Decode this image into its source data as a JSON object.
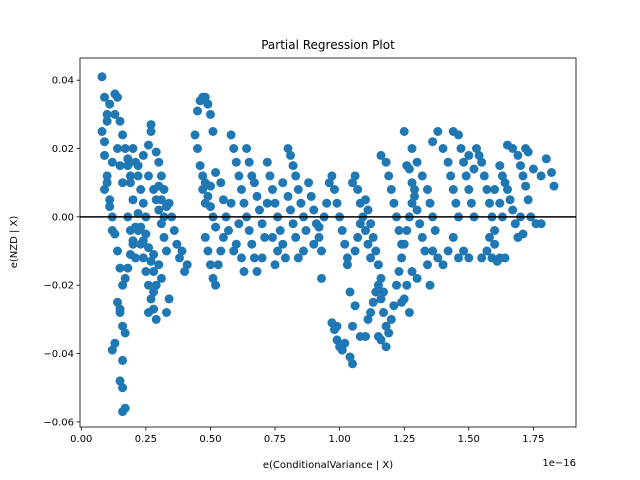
{
  "chart_data": {
    "type": "scatter",
    "title": "Partial Regression Plot",
    "xlabel": "e(ConditionalVariance | X)",
    "ylabel": "e(NZD | X)",
    "x_offset_label": "1e−16",
    "xlim": [
      -0.005,
      1.915
    ],
    "ylim": [
      -0.0615,
      0.0465
    ],
    "xticks": [
      0.0,
      0.25,
      0.5,
      0.75,
      1.0,
      1.25,
      1.5,
      1.75
    ],
    "xtick_labels": [
      "0.00",
      "0.25",
      "0.50",
      "0.75",
      "1.00",
      "1.25",
      "1.50",
      "1.75"
    ],
    "yticks": [
      -0.06,
      -0.04,
      -0.02,
      0.0,
      0.02,
      0.04
    ],
    "ytick_labels": [
      "−0.06",
      "−0.04",
      "−0.02",
      "0.00",
      "0.02",
      "0.04"
    ],
    "grid": false,
    "point_color": "#1f77b4",
    "line_color": "#000000",
    "fitted_line": {
      "x": [
        -0.005,
        1.915
      ],
      "y": [
        0.0,
        0.0
      ]
    },
    "points": [
      [
        0.08,
        0.041
      ],
      [
        0.09,
        0.035
      ],
      [
        0.1,
        0.03
      ],
      [
        0.08,
        0.025
      ],
      [
        0.09,
        0.018
      ],
      [
        0.1,
        0.01
      ],
      [
        0.11,
        0.005
      ],
      [
        0.12,
        0.0
      ],
      [
        0.09,
        0.022
      ],
      [
        0.1,
        0.028
      ],
      [
        0.11,
        0.033
      ],
      [
        0.12,
        0.016
      ],
      [
        0.1,
        0.012
      ],
      [
        0.09,
        0.008
      ],
      [
        0.11,
        0.003
      ],
      [
        0.12,
        -0.004
      ],
      [
        0.13,
        0.036
      ],
      [
        0.14,
        0.035
      ],
      [
        0.13,
        0.03
      ],
      [
        0.15,
        0.028
      ],
      [
        0.16,
        0.024
      ],
      [
        0.14,
        0.02
      ],
      [
        0.15,
        0.015
      ],
      [
        0.16,
        0.01
      ],
      [
        0.13,
        -0.005
      ],
      [
        0.14,
        -0.01
      ],
      [
        0.15,
        -0.015
      ],
      [
        0.16,
        -0.02
      ],
      [
        0.14,
        -0.025
      ],
      [
        0.15,
        -0.028
      ],
      [
        0.16,
        -0.032
      ],
      [
        0.17,
        -0.034
      ],
      [
        0.13,
        -0.037
      ],
      [
        0.12,
        -0.039
      ],
      [
        0.16,
        -0.042
      ],
      [
        0.15,
        -0.048
      ],
      [
        0.16,
        -0.05
      ],
      [
        0.17,
        -0.056
      ],
      [
        0.16,
        -0.057
      ],
      [
        0.15,
        -0.027
      ],
      [
        0.17,
        0.02
      ],
      [
        0.18,
        0.015
      ],
      [
        0.19,
        0.01
      ],
      [
        0.2,
        0.005
      ],
      [
        0.18,
        0.0
      ],
      [
        0.19,
        -0.004
      ],
      [
        0.2,
        -0.008
      ],
      [
        0.21,
        -0.012
      ],
      [
        0.18,
        0.017
      ],
      [
        0.19,
        0.012
      ],
      [
        0.2,
        0.02
      ],
      [
        0.21,
        0.016
      ],
      [
        0.22,
        0.012
      ],
      [
        0.23,
        0.008
      ],
      [
        0.24,
        0.004
      ],
      [
        0.25,
        0.0
      ],
      [
        0.22,
        -0.004
      ],
      [
        0.23,
        -0.008
      ],
      [
        0.24,
        -0.012
      ],
      [
        0.25,
        -0.016
      ],
      [
        0.26,
        -0.02
      ],
      [
        0.27,
        -0.024
      ],
      [
        0.28,
        -0.027
      ],
      [
        0.29,
        -0.03
      ],
      [
        0.22,
        0.015
      ],
      [
        0.24,
        0.018
      ],
      [
        0.26,
        0.021
      ],
      [
        0.27,
        0.025
      ],
      [
        0.27,
        0.027
      ],
      [
        0.26,
        0.012
      ],
      [
        0.28,
        0.008
      ],
      [
        0.29,
        0.005
      ],
      [
        0.3,
        0.002
      ],
      [
        0.31,
        -0.002
      ],
      [
        0.32,
        -0.006
      ],
      [
        0.33,
        -0.01
      ],
      [
        0.3,
        -0.014
      ],
      [
        0.31,
        -0.018
      ],
      [
        0.29,
        -0.02
      ],
      [
        0.28,
        -0.016
      ],
      [
        0.29,
        0.019
      ],
      [
        0.3,
        0.016
      ],
      [
        0.31,
        0.012
      ],
      [
        0.32,
        0.008
      ],
      [
        0.33,
        0.003
      ],
      [
        0.3,
        0.009
      ],
      [
        0.31,
        0.005
      ],
      [
        0.32,
        0.0
      ],
      [
        0.25,
        -0.005
      ],
      [
        0.26,
        -0.009
      ],
      [
        0.27,
        -0.013
      ],
      [
        0.28,
        -0.011
      ],
      [
        0.24,
        -0.007
      ],
      [
        0.23,
        -0.003
      ],
      [
        0.22,
        0.001
      ],
      [
        0.21,
        -0.003
      ],
      [
        0.2,
        -0.007
      ],
      [
        0.19,
        -0.011
      ],
      [
        0.18,
        -0.015
      ],
      [
        0.17,
        -0.018
      ],
      [
        0.35,
        0.0
      ],
      [
        0.36,
        -0.004
      ],
      [
        0.34,
        0.004
      ],
      [
        0.37,
        -0.008
      ],
      [
        0.38,
        -0.012
      ],
      [
        0.39,
        -0.01
      ],
      [
        0.4,
        -0.016
      ],
      [
        0.41,
        -0.014
      ],
      [
        0.33,
        -0.028
      ],
      [
        0.34,
        -0.024
      ],
      [
        0.26,
        -0.028
      ],
      [
        0.28,
        -0.022
      ],
      [
        0.44,
        0.024
      ],
      [
        0.45,
        0.031
      ],
      [
        0.46,
        0.034
      ],
      [
        0.47,
        0.035
      ],
      [
        0.48,
        0.035
      ],
      [
        0.49,
        0.033
      ],
      [
        0.5,
        0.03
      ],
      [
        0.51,
        0.025
      ],
      [
        0.45,
        0.02
      ],
      [
        0.46,
        0.015
      ],
      [
        0.47,
        0.012
      ],
      [
        0.48,
        0.01
      ],
      [
        0.49,
        0.006
      ],
      [
        0.5,
        0.003
      ],
      [
        0.51,
        0.0
      ],
      [
        0.52,
        -0.003
      ],
      [
        0.48,
        -0.006
      ],
      [
        0.49,
        -0.01
      ],
      [
        0.5,
        -0.014
      ],
      [
        0.51,
        -0.018
      ],
      [
        0.52,
        -0.02
      ],
      [
        0.53,
        -0.014
      ],
      [
        0.54,
        -0.01
      ],
      [
        0.55,
        -0.006
      ],
      [
        0.47,
        0.008
      ],
      [
        0.48,
        0.004
      ],
      [
        0.5,
        0.009
      ],
      [
        0.52,
        0.013
      ],
      [
        0.54,
        0.01
      ],
      [
        0.55,
        0.005
      ],
      [
        0.56,
        0.0
      ],
      [
        0.57,
        -0.004
      ],
      [
        0.58,
        0.024
      ],
      [
        0.59,
        0.02
      ],
      [
        0.6,
        0.016
      ],
      [
        0.61,
        0.012
      ],
      [
        0.62,
        0.008
      ],
      [
        0.63,
        0.004
      ],
      [
        0.64,
        0.0
      ],
      [
        0.65,
        -0.004
      ],
      [
        0.58,
        0.004
      ],
      [
        0.6,
        -0.008
      ],
      [
        0.62,
        -0.012
      ],
      [
        0.63,
        -0.016
      ],
      [
        0.59,
        -0.01
      ],
      [
        0.61,
        -0.002
      ],
      [
        0.66,
        -0.008
      ],
      [
        0.67,
        -0.012
      ],
      [
        0.64,
        0.02
      ],
      [
        0.65,
        0.016
      ],
      [
        0.66,
        0.012
      ],
      [
        0.67,
        0.01
      ],
      [
        0.68,
        0.006
      ],
      [
        0.69,
        0.002
      ],
      [
        0.7,
        -0.002
      ],
      [
        0.71,
        -0.006
      ],
      [
        0.72,
        0.016
      ],
      [
        0.73,
        0.012
      ],
      [
        0.74,
        0.008
      ],
      [
        0.75,
        0.004
      ],
      [
        0.76,
        0.0
      ],
      [
        0.77,
        -0.004
      ],
      [
        0.78,
        -0.008
      ],
      [
        0.79,
        -0.012
      ],
      [
        0.72,
        0.004
      ],
      [
        0.74,
        -0.006
      ],
      [
        0.76,
        -0.01
      ],
      [
        0.78,
        0.01
      ],
      [
        0.8,
        0.006
      ],
      [
        0.81,
        0.002
      ],
      [
        0.82,
        -0.002
      ],
      [
        0.83,
        -0.006
      ],
      [
        0.8,
        0.02
      ],
      [
        0.81,
        0.018
      ],
      [
        0.82,
        0.015
      ],
      [
        0.83,
        0.012
      ],
      [
        0.84,
        0.008
      ],
      [
        0.85,
        0.004
      ],
      [
        0.86,
        0.0
      ],
      [
        0.87,
        -0.004
      ],
      [
        0.88,
        0.01
      ],
      [
        0.89,
        0.006
      ],
      [
        0.9,
        0.002
      ],
      [
        0.91,
        -0.002
      ],
      [
        0.92,
        -0.006
      ],
      [
        0.93,
        -0.01
      ],
      [
        0.94,
        0.0
      ],
      [
        0.95,
        0.004
      ],
      [
        0.96,
        0.01
      ],
      [
        0.97,
        0.012
      ],
      [
        0.98,
        0.008
      ],
      [
        0.99,
        0.004
      ],
      [
        1.0,
        0.0
      ],
      [
        1.01,
        -0.004
      ],
      [
        1.02,
        -0.008
      ],
      [
        1.03,
        -0.012
      ],
      [
        0.93,
        -0.018
      ],
      [
        0.92,
        -0.003
      ],
      [
        0.9,
        -0.008
      ],
      [
        0.86,
        -0.01
      ],
      [
        0.84,
        -0.012
      ],
      [
        0.75,
        -0.014
      ],
      [
        0.7,
        -0.012
      ],
      [
        0.68,
        -0.016
      ],
      [
        0.97,
        -0.031
      ],
      [
        0.98,
        -0.033
      ],
      [
        0.99,
        -0.036
      ],
      [
        1.0,
        -0.038
      ],
      [
        1.01,
        -0.039
      ],
      [
        1.02,
        -0.037
      ],
      [
        0.99,
        -0.032
      ],
      [
        1.05,
        -0.032
      ],
      [
        1.04,
        -0.041
      ],
      [
        1.05,
        -0.043
      ],
      [
        1.04,
        -0.022
      ],
      [
        1.06,
        -0.026
      ],
      [
        1.03,
        -0.014
      ],
      [
        1.06,
        -0.01
      ],
      [
        1.07,
        -0.006
      ],
      [
        1.08,
        -0.002
      ],
      [
        1.05,
        0.01
      ],
      [
        1.06,
        0.012
      ],
      [
        1.07,
        0.008
      ],
      [
        1.08,
        0.004
      ],
      [
        1.09,
        0.0
      ],
      [
        1.1,
        -0.004
      ],
      [
        1.11,
        -0.008
      ],
      [
        1.12,
        -0.012
      ],
      [
        1.1,
        0.005
      ],
      [
        1.11,
        0.002
      ],
      [
        1.12,
        -0.002
      ],
      [
        1.13,
        -0.006
      ],
      [
        1.14,
        -0.01
      ],
      [
        1.15,
        -0.014
      ],
      [
        1.16,
        -0.018
      ],
      [
        1.17,
        -0.022
      ],
      [
        1.08,
        -0.035
      ],
      [
        1.1,
        -0.035
      ],
      [
        1.11,
        -0.03
      ],
      [
        1.12,
        -0.028
      ],
      [
        1.13,
        -0.025
      ],
      [
        1.14,
        -0.022
      ],
      [
        1.15,
        -0.02
      ],
      [
        1.16,
        -0.024
      ],
      [
        1.17,
        -0.028
      ],
      [
        1.18,
        -0.032
      ],
      [
        1.15,
        -0.035
      ],
      [
        1.16,
        -0.036
      ],
      [
        1.18,
        -0.038
      ],
      [
        1.19,
        -0.034
      ],
      [
        1.2,
        -0.03
      ],
      [
        1.21,
        -0.026
      ],
      [
        1.22,
        -0.02
      ],
      [
        1.23,
        -0.016
      ],
      [
        1.24,
        -0.012
      ],
      [
        1.25,
        -0.008
      ],
      [
        1.26,
        -0.004
      ],
      [
        1.27,
        0.0
      ],
      [
        1.28,
        0.004
      ],
      [
        1.29,
        0.008
      ],
      [
        1.16,
        0.018
      ],
      [
        1.18,
        0.016
      ],
      [
        1.19,
        0.012
      ],
      [
        1.2,
        0.008
      ],
      [
        1.21,
        0.004
      ],
      [
        1.22,
        0.0
      ],
      [
        1.23,
        -0.004
      ],
      [
        1.24,
        -0.008
      ],
      [
        1.26,
        0.015
      ],
      [
        1.27,
        0.014
      ],
      [
        1.28,
        0.01
      ],
      [
        1.29,
        0.006
      ],
      [
        1.3,
        0.002
      ],
      [
        1.31,
        -0.002
      ],
      [
        1.32,
        -0.006
      ],
      [
        1.33,
        -0.01
      ],
      [
        1.25,
        0.025
      ],
      [
        1.28,
        0.02
      ],
      [
        1.3,
        0.016
      ],
      [
        1.32,
        0.012
      ],
      [
        1.34,
        0.008
      ],
      [
        1.35,
        0.004
      ],
      [
        1.36,
        0.0
      ],
      [
        1.37,
        -0.004
      ],
      [
        1.36,
        0.022
      ],
      [
        1.38,
        0.025
      ],
      [
        1.4,
        0.02
      ],
      [
        1.42,
        0.016
      ],
      [
        1.43,
        0.012
      ],
      [
        1.44,
        0.008
      ],
      [
        1.45,
        0.004
      ],
      [
        1.46,
        0.0
      ],
      [
        1.44,
        0.025
      ],
      [
        1.46,
        0.024
      ],
      [
        1.47,
        0.02
      ],
      [
        1.48,
        0.016
      ],
      [
        1.49,
        0.012
      ],
      [
        1.5,
        0.008
      ],
      [
        1.51,
        0.004
      ],
      [
        1.52,
        0.0
      ],
      [
        1.36,
        -0.01
      ],
      [
        1.38,
        -0.012
      ],
      [
        1.4,
        -0.014
      ],
      [
        1.42,
        -0.01
      ],
      [
        1.44,
        -0.006
      ],
      [
        1.46,
        -0.012
      ],
      [
        1.48,
        -0.01
      ],
      [
        1.5,
        -0.012
      ],
      [
        1.34,
        -0.014
      ],
      [
        1.35,
        -0.02
      ],
      [
        1.3,
        -0.018
      ],
      [
        1.28,
        -0.016
      ],
      [
        1.26,
        -0.02
      ],
      [
        1.25,
        -0.024
      ],
      [
        1.27,
        -0.028
      ],
      [
        1.24,
        -0.025
      ],
      [
        1.53,
        0.02
      ],
      [
        1.54,
        0.018
      ],
      [
        1.55,
        0.016
      ],
      [
        1.56,
        0.012
      ],
      [
        1.57,
        0.008
      ],
      [
        1.58,
        0.004
      ],
      [
        1.59,
        0.0
      ],
      [
        1.6,
        -0.004
      ],
      [
        1.55,
        -0.012
      ],
      [
        1.57,
        -0.01
      ],
      [
        1.59,
        -0.012
      ],
      [
        1.61,
        -0.013
      ],
      [
        1.62,
        -0.012
      ],
      [
        1.64,
        -0.012
      ],
      [
        1.6,
        -0.008
      ],
      [
        1.58,
        -0.006
      ],
      [
        1.62,
        0.015
      ],
      [
        1.63,
        0.012
      ],
      [
        1.64,
        0.01
      ],
      [
        1.65,
        0.008
      ],
      [
        1.66,
        0.005
      ],
      [
        1.67,
        0.002
      ],
      [
        1.68,
        -0.002
      ],
      [
        1.69,
        -0.006
      ],
      [
        1.65,
        0.021
      ],
      [
        1.67,
        0.02
      ],
      [
        1.69,
        0.018
      ],
      [
        1.7,
        0.015
      ],
      [
        1.71,
        0.012
      ],
      [
        1.72,
        0.009
      ],
      [
        1.73,
        0.005
      ],
      [
        1.74,
        0.0
      ],
      [
        1.72,
        0.02
      ],
      [
        1.73,
        0.019
      ],
      [
        1.75,
        0.014
      ],
      [
        1.78,
        0.012
      ],
      [
        1.8,
        0.017
      ],
      [
        1.82,
        0.013
      ],
      [
        1.83,
        0.009
      ],
      [
        1.76,
        -0.002
      ],
      [
        1.78,
        -0.002
      ],
      [
        1.7,
        0.0
      ],
      [
        1.71,
        -0.005
      ],
      [
        1.6,
        0.008
      ],
      [
        1.62,
        0.004
      ],
      [
        1.63,
        0.0
      ],
      [
        1.5,
        0.018
      ],
      [
        1.52,
        0.014
      ]
    ]
  }
}
